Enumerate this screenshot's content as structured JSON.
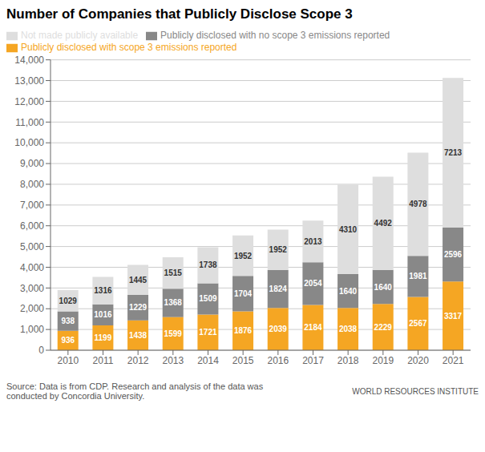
{
  "chart_data": {
    "type": "bar",
    "title": "Number of Companies that Publicly Disclose Scope 3",
    "categories": [
      "2010",
      "2011",
      "2012",
      "2013",
      "2014",
      "2015",
      "2016",
      "2017",
      "2018",
      "2019",
      "2020",
      "2021"
    ],
    "series": [
      {
        "name": "Publicly disclosed with scope 3 emissions reported",
        "color": "#F5A623",
        "values": [
          936,
          1199,
          1438,
          1599,
          1721,
          1876,
          2039,
          2184,
          2038,
          2229,
          2567,
          3317
        ]
      },
      {
        "name": "Publicly disclosed with no scope 3 emissions reported",
        "color": "#888888",
        "values": [
          938,
          1016,
          1229,
          1368,
          1509,
          1704,
          1824,
          2054,
          1640,
          1640,
          1981,
          2596
        ]
      },
      {
        "name": "Not made publicly available",
        "color": "#DEDEDE",
        "values": [
          1029,
          1316,
          1445,
          1515,
          1738,
          1952,
          1952,
          2013,
          4310,
          4492,
          4978,
          7213
        ]
      }
    ],
    "stacked": true,
    "data_labels": true,
    "grid": true,
    "legend": "top",
    "ylim": [
      0,
      14000
    ],
    "yticks": [
      0,
      {
        "value": 1000,
        "label": "1,000"
      },
      {
        "value": 2000,
        "label": "2,000"
      },
      {
        "value": 3000,
        "label": "3,000"
      },
      {
        "value": 4000,
        "label": "4,000"
      },
      {
        "value": 5000,
        "label": "5,000"
      },
      {
        "value": 6000,
        "label": "6,000"
      },
      {
        "value": 7000,
        "label": "7,000"
      },
      {
        "value": 8000,
        "label": "8,000"
      },
      {
        "value": 9000,
        "label": "9,000"
      },
      {
        "value": 10000,
        "label": "10,000"
      },
      {
        "value": 11000,
        "label": "11,000"
      },
      {
        "value": 12000,
        "label": "12,000"
      },
      {
        "value": 13000,
        "label": "13,000"
      },
      {
        "value": 14000,
        "label": "14,000"
      }
    ],
    "annotations": [
      "Source: Data is from CDP. Research and analysis of the data was\nconducted by Concordia University.",
      "WORLD RESOURCES INSTITUTE"
    ]
  }
}
